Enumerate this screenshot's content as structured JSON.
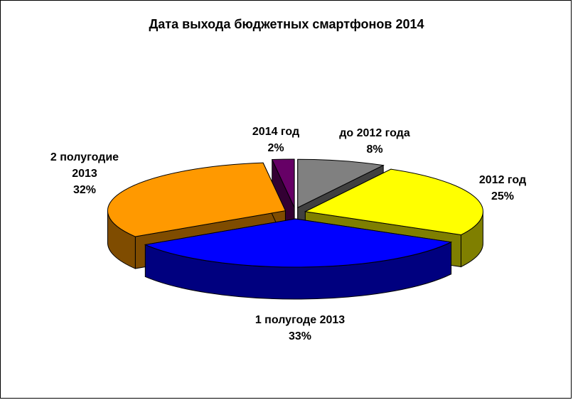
{
  "chart_data": {
    "type": "pie",
    "title": "Дата выхода бюджетных смартфонов 2014",
    "categories": [
      "до 2012 года",
      "2012 год",
      "1 полугоде 2013",
      "2 полугодие 2013",
      "2014 год"
    ],
    "values": [
      8,
      25,
      33,
      32,
      2
    ],
    "value_labels": [
      "8%",
      "25%",
      "33%",
      "32%",
      "2%"
    ],
    "colors": [
      "#808080",
      "#ffff00",
      "#0000ff",
      "#ff9900",
      "#660066"
    ]
  }
}
